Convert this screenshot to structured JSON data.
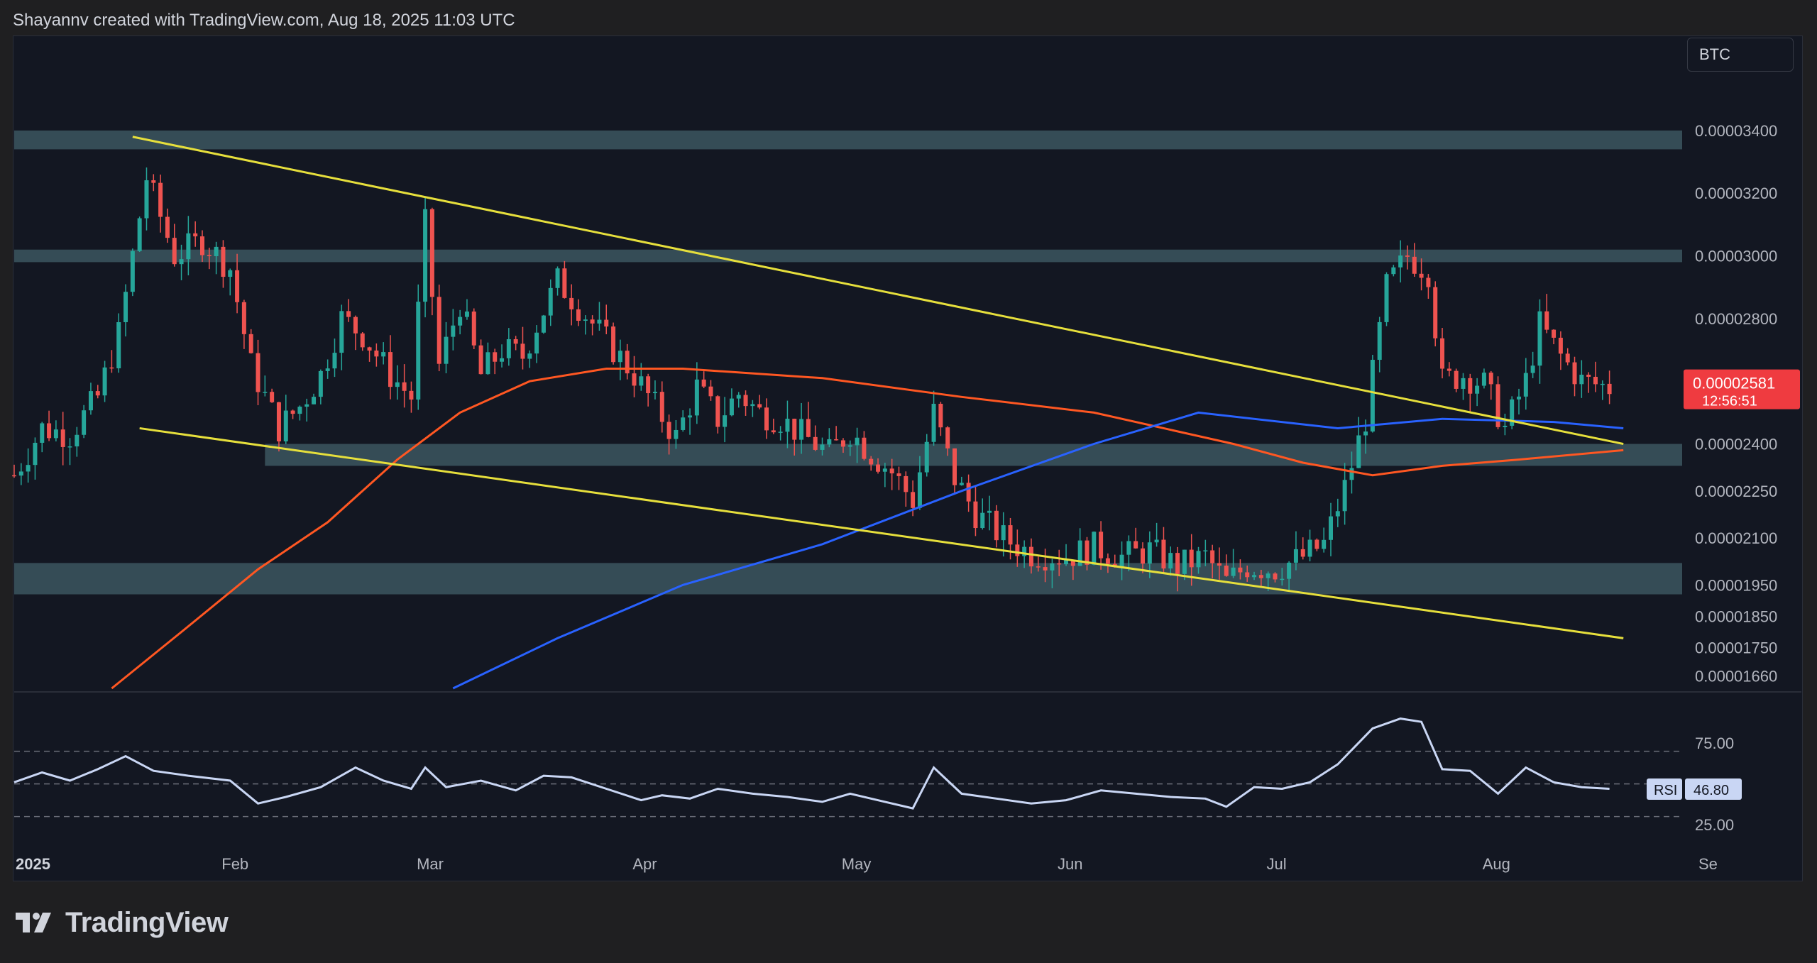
{
  "header": {
    "attribution": "Shayannv created with TradingView.com, Aug 18, 2025 11:03 UTC"
  },
  "symbol": "BTC",
  "footer": {
    "logo_text": "TradingView"
  },
  "colors": {
    "background": "#131722",
    "up": "#26a69a",
    "down": "#ef5350",
    "ma_short": "#ff5722",
    "ma_long": "#2962ff",
    "trendline": "#e6df3c",
    "zone": "#5f8f96",
    "rsi": "#c9d6f4",
    "last_price_bg": "#ef3b40"
  },
  "chart_data": [
    {
      "type": "candlestick",
      "pair": "BTC",
      "price_axis": {
        "tick_labels": [
          "0.00003400",
          "0.00003200",
          "0.00003000",
          "0.00002800",
          "0.00002400",
          "0.00002250",
          "0.00002100",
          "0.00001950",
          "0.00001850",
          "0.00001750",
          "0.00001660"
        ],
        "ylim": [
          1.62e-05,
          3.59e-05
        ]
      },
      "time_axis": {
        "tick_labels": [
          "2025",
          "Feb",
          "Mar",
          "Apr",
          "May",
          "Jun",
          "Jul",
          "Aug",
          "Se"
        ],
        "xlim": [
          "2025-01-01",
          "2025-09-01"
        ]
      },
      "last_price": {
        "value": "0.00002581",
        "countdown": "12:56:51"
      },
      "price_path": [
        [
          "2025-01-01",
          2.3e-05
        ],
        [
          "2025-01-05",
          2.45e-05
        ],
        [
          "2025-01-09",
          2.43e-05
        ],
        [
          "2025-01-13",
          2.55e-05
        ],
        [
          "2025-01-16",
          2.75e-05
        ],
        [
          "2025-01-20",
          3.25e-05
        ],
        [
          "2025-01-24",
          3e-05
        ],
        [
          "2025-01-28",
          3.05e-05
        ],
        [
          "2025-02-01",
          2.96e-05
        ],
        [
          "2025-02-04",
          2.65e-05
        ],
        [
          "2025-02-08",
          2.45e-05
        ],
        [
          "2025-02-11",
          2.52e-05
        ],
        [
          "2025-02-14",
          2.62e-05
        ],
        [
          "2025-02-17",
          2.8e-05
        ],
        [
          "2025-02-20",
          2.75e-05
        ],
        [
          "2025-02-24",
          2.62e-05
        ],
        [
          "2025-02-27",
          2.55e-05
        ],
        [
          "2025-03-01",
          3.1e-05
        ],
        [
          "2025-03-03",
          2.65e-05
        ],
        [
          "2025-03-06",
          2.85e-05
        ],
        [
          "2025-03-09",
          2.62e-05
        ],
        [
          "2025-03-12",
          2.7e-05
        ],
        [
          "2025-03-15",
          2.68e-05
        ],
        [
          "2025-03-17",
          2.78e-05
        ],
        [
          "2025-03-20",
          2.92e-05
        ],
        [
          "2025-03-23",
          2.84e-05
        ],
        [
          "2025-03-27",
          2.73e-05
        ],
        [
          "2025-03-31",
          2.62e-05
        ],
        [
          "2025-04-03",
          2.52e-05
        ],
        [
          "2025-04-06",
          2.42e-05
        ],
        [
          "2025-04-09",
          2.58e-05
        ],
        [
          "2025-04-12",
          2.48e-05
        ],
        [
          "2025-04-15",
          2.56e-05
        ],
        [
          "2025-04-18",
          2.5e-05
        ],
        [
          "2025-04-21",
          2.48e-05
        ],
        [
          "2025-04-24",
          2.43e-05
        ],
        [
          "2025-04-28",
          2.37e-05
        ],
        [
          "2025-05-01",
          2.44e-05
        ],
        [
          "2025-05-04",
          2.37e-05
        ],
        [
          "2025-05-07",
          2.31e-05
        ],
        [
          "2025-05-10",
          2.22e-05
        ],
        [
          "2025-05-13",
          2.5e-05
        ],
        [
          "2025-05-16",
          2.29e-05
        ],
        [
          "2025-05-19",
          2.18e-05
        ],
        [
          "2025-05-23",
          2.1e-05
        ],
        [
          "2025-05-27",
          2.05e-05
        ],
        [
          "2025-06-01",
          2.04e-05
        ],
        [
          "2025-06-05",
          2.07e-05
        ],
        [
          "2025-06-09",
          2.04e-05
        ],
        [
          "2025-06-13",
          2.06e-05
        ],
        [
          "2025-06-17",
          2.01e-05
        ],
        [
          "2025-06-21",
          2.04e-05
        ],
        [
          "2025-06-24",
          1.96e-05
        ],
        [
          "2025-06-27",
          2.01e-05
        ],
        [
          "2025-07-01",
          2e-05
        ],
        [
          "2025-07-05",
          2.04e-05
        ],
        [
          "2025-07-08",
          2.08e-05
        ],
        [
          "2025-07-11",
          2.26e-05
        ],
        [
          "2025-07-14",
          2.48e-05
        ],
        [
          "2025-07-17",
          2.9e-05
        ],
        [
          "2025-07-20",
          3e-05
        ],
        [
          "2025-07-23",
          2.95e-05
        ],
        [
          "2025-07-25",
          2.6e-05
        ],
        [
          "2025-07-28",
          2.62e-05
        ],
        [
          "2025-07-31",
          2.59e-05
        ],
        [
          "2025-08-03",
          2.45e-05
        ],
        [
          "2025-08-06",
          2.6e-05
        ],
        [
          "2025-08-08",
          2.78e-05
        ],
        [
          "2025-08-11",
          2.68e-05
        ],
        [
          "2025-08-14",
          2.6e-05
        ],
        [
          "2025-08-18",
          2.58e-05
        ]
      ],
      "ma_short": [
        [
          "2025-01-15",
          1.62e-05
        ],
        [
          "2025-01-25",
          1.8e-05
        ],
        [
          "2025-02-05",
          2e-05
        ],
        [
          "2025-02-15",
          2.15e-05
        ],
        [
          "2025-02-25",
          2.35e-05
        ],
        [
          "2025-03-06",
          2.5e-05
        ],
        [
          "2025-03-16",
          2.6e-05
        ],
        [
          "2025-03-27",
          2.64e-05
        ],
        [
          "2025-04-07",
          2.64e-05
        ],
        [
          "2025-04-27",
          2.61e-05
        ],
        [
          "2025-05-17",
          2.55e-05
        ],
        [
          "2025-06-05",
          2.5e-05
        ],
        [
          "2025-06-25",
          2.4e-05
        ],
        [
          "2025-07-05",
          2.34e-05
        ],
        [
          "2025-07-15",
          2.3e-05
        ],
        [
          "2025-07-25",
          2.33e-05
        ],
        [
          "2025-08-05",
          2.35e-05
        ],
        [
          "2025-08-20",
          2.38e-05
        ]
      ],
      "ma_long": [
        [
          "2025-03-05",
          1.62e-05
        ],
        [
          "2025-03-20",
          1.78e-05
        ],
        [
          "2025-04-07",
          1.95e-05
        ],
        [
          "2025-04-27",
          2.08e-05
        ],
        [
          "2025-05-17",
          2.25e-05
        ],
        [
          "2025-06-05",
          2.4e-05
        ],
        [
          "2025-06-20",
          2.5e-05
        ],
        [
          "2025-07-10",
          2.45e-05
        ],
        [
          "2025-07-25",
          2.48e-05
        ],
        [
          "2025-08-10",
          2.47e-05
        ],
        [
          "2025-08-20",
          2.45e-05
        ]
      ],
      "trendlines": [
        {
          "from": [
            "2025-01-18",
            3.38e-05
          ],
          "to": [
            "2025-08-20",
            2.4e-05
          ]
        },
        {
          "from": [
            "2025-01-19",
            2.45e-05
          ],
          "to": [
            "2025-08-20",
            1.78e-05
          ]
        }
      ],
      "zones": [
        {
          "from": 3.34e-05,
          "to": 3.4e-05,
          "x_start": "2025-01-01"
        },
        {
          "from": 2.98e-05,
          "to": 3.02e-05,
          "x_start": "2025-01-01"
        },
        {
          "from": 2.33e-05,
          "to": 2.4e-05,
          "x_start": "2025-02-06"
        },
        {
          "from": 1.92e-05,
          "to": 2.02e-05,
          "x_start": "2025-01-01"
        }
      ]
    },
    {
      "type": "line",
      "indicator": "RSI",
      "value_label": "RSI",
      "last_value": "46.80",
      "y_tick_labels": [
        "75.00",
        "25.00"
      ],
      "ylim": [
        12,
        102
      ],
      "levels": [
        70,
        50,
        30
      ],
      "values": [
        [
          "2025-01-01",
          51
        ],
        [
          "2025-01-05",
          57
        ],
        [
          "2025-01-09",
          52
        ],
        [
          "2025-01-13",
          59
        ],
        [
          "2025-01-17",
          67
        ],
        [
          "2025-01-21",
          58
        ],
        [
          "2025-01-26",
          55
        ],
        [
          "2025-02-01",
          52
        ],
        [
          "2025-02-05",
          38
        ],
        [
          "2025-02-09",
          42
        ],
        [
          "2025-02-14",
          48
        ],
        [
          "2025-02-19",
          60
        ],
        [
          "2025-02-23",
          52
        ],
        [
          "2025-02-27",
          47
        ],
        [
          "2025-03-01",
          60
        ],
        [
          "2025-03-04",
          48
        ],
        [
          "2025-03-09",
          52
        ],
        [
          "2025-03-14",
          46
        ],
        [
          "2025-03-18",
          55
        ],
        [
          "2025-03-22",
          54
        ],
        [
          "2025-03-27",
          47
        ],
        [
          "2025-04-01",
          40
        ],
        [
          "2025-04-04",
          43
        ],
        [
          "2025-04-08",
          41
        ],
        [
          "2025-04-12",
          47
        ],
        [
          "2025-04-17",
          44
        ],
        [
          "2025-04-22",
          42
        ],
        [
          "2025-04-27",
          39
        ],
        [
          "2025-05-01",
          44
        ],
        [
          "2025-05-06",
          39
        ],
        [
          "2025-05-10",
          35
        ],
        [
          "2025-05-13",
          60
        ],
        [
          "2025-05-17",
          44
        ],
        [
          "2025-05-22",
          41
        ],
        [
          "2025-05-27",
          38
        ],
        [
          "2025-06-01",
          40
        ],
        [
          "2025-06-06",
          46
        ],
        [
          "2025-06-11",
          44
        ],
        [
          "2025-06-16",
          42
        ],
        [
          "2025-06-21",
          41
        ],
        [
          "2025-06-24",
          36
        ],
        [
          "2025-06-28",
          48
        ],
        [
          "2025-07-02",
          47
        ],
        [
          "2025-07-06",
          51
        ],
        [
          "2025-07-10",
          62
        ],
        [
          "2025-07-15",
          84
        ],
        [
          "2025-07-19",
          90
        ],
        [
          "2025-07-22",
          88
        ],
        [
          "2025-07-25",
          59
        ],
        [
          "2025-07-29",
          58
        ],
        [
          "2025-08-02",
          44
        ],
        [
          "2025-08-06",
          60
        ],
        [
          "2025-08-10",
          51
        ],
        [
          "2025-08-14",
          48
        ],
        [
          "2025-08-18",
          47
        ]
      ]
    }
  ]
}
